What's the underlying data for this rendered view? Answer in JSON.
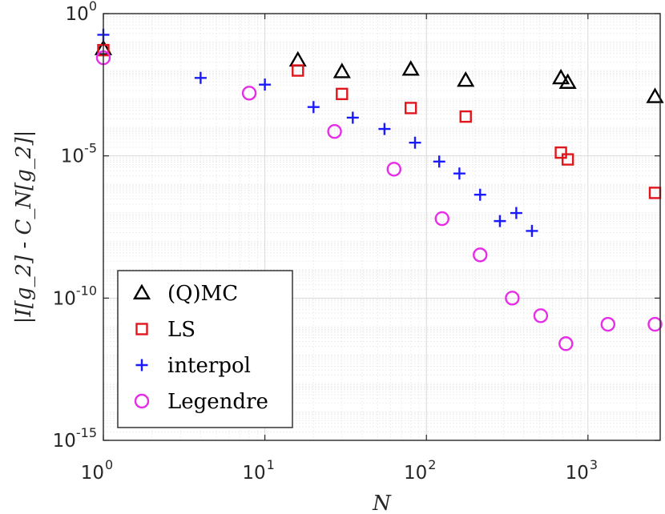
{
  "chart_data": {
    "type": "scatter",
    "title": "",
    "xlabel": "N",
    "ylabel": "|I[g_2] - C_N[g_2]|",
    "xscale": "log",
    "yscale": "log",
    "xlim": [
      1,
      2800
    ],
    "ylim": [
      1e-15,
      1
    ],
    "grid": true,
    "legend_position": "bottom-left",
    "x_ticks": [
      {
        "value": 1,
        "base": "10",
        "exp": "0"
      },
      {
        "value": 10,
        "base": "10",
        "exp": "1"
      },
      {
        "value": 100,
        "base": "10",
        "exp": "2"
      },
      {
        "value": 1000,
        "base": "10",
        "exp": "3"
      }
    ],
    "y_ticks": [
      {
        "value": 1,
        "base": "10",
        "exp": "0"
      },
      {
        "value": 1e-05,
        "base": "10",
        "exp": "-5"
      },
      {
        "value": 1e-10,
        "base": "10",
        "exp": "-10"
      },
      {
        "value": 1e-15,
        "base": "10",
        "exp": "-15"
      }
    ],
    "series": [
      {
        "name": "(Q)MC",
        "marker": "triangle",
        "color": "#000000",
        "points": [
          [
            1,
            0.058
          ],
          [
            16,
            0.023
          ],
          [
            30,
            0.009
          ],
          [
            80,
            0.011
          ],
          [
            175,
            0.0045
          ],
          [
            680,
            0.0055
          ],
          [
            750,
            0.0038
          ],
          [
            2600,
            0.0012
          ]
        ]
      },
      {
        "name": "LS",
        "marker": "square",
        "color": "#e0161c",
        "points": [
          [
            1,
            0.052
          ],
          [
            16,
            0.01
          ],
          [
            30,
            0.0015
          ],
          [
            80,
            0.00048
          ],
          [
            175,
            0.00024
          ],
          [
            680,
            1.3e-05
          ],
          [
            750,
            7.5e-06
          ],
          [
            2600,
            5e-07
          ]
        ]
      },
      {
        "name": "interpol",
        "marker": "plus",
        "color": "#1a1aff",
        "points": [
          [
            1,
            0.18
          ],
          [
            4,
            0.0055
          ],
          [
            10,
            0.0032
          ],
          [
            20,
            0.00052
          ],
          [
            35,
            0.00022
          ],
          [
            55,
            8.8e-05
          ],
          [
            85,
            2.9e-05
          ],
          [
            120,
            6.3e-06
          ],
          [
            160,
            2.4e-06
          ],
          [
            215,
            4.3e-07
          ],
          [
            285,
            5.1e-08
          ],
          [
            360,
            9.8e-08
          ],
          [
            450,
            2.3e-08
          ]
        ]
      },
      {
        "name": "Legendre",
        "marker": "circle",
        "color": "#e62ee6",
        "points": [
          [
            1,
            0.028
          ],
          [
            8,
            0.0016
          ],
          [
            27,
            7.2e-05
          ],
          [
            63,
            3.4e-06
          ],
          [
            125,
            6.2e-08
          ],
          [
            215,
            3.3e-09
          ],
          [
            340,
            1e-10
          ],
          [
            510,
            2.4e-11
          ],
          [
            730,
            2.5e-12
          ],
          [
            1330,
            1.2e-11
          ],
          [
            2600,
            1.2e-11
          ]
        ]
      }
    ]
  }
}
